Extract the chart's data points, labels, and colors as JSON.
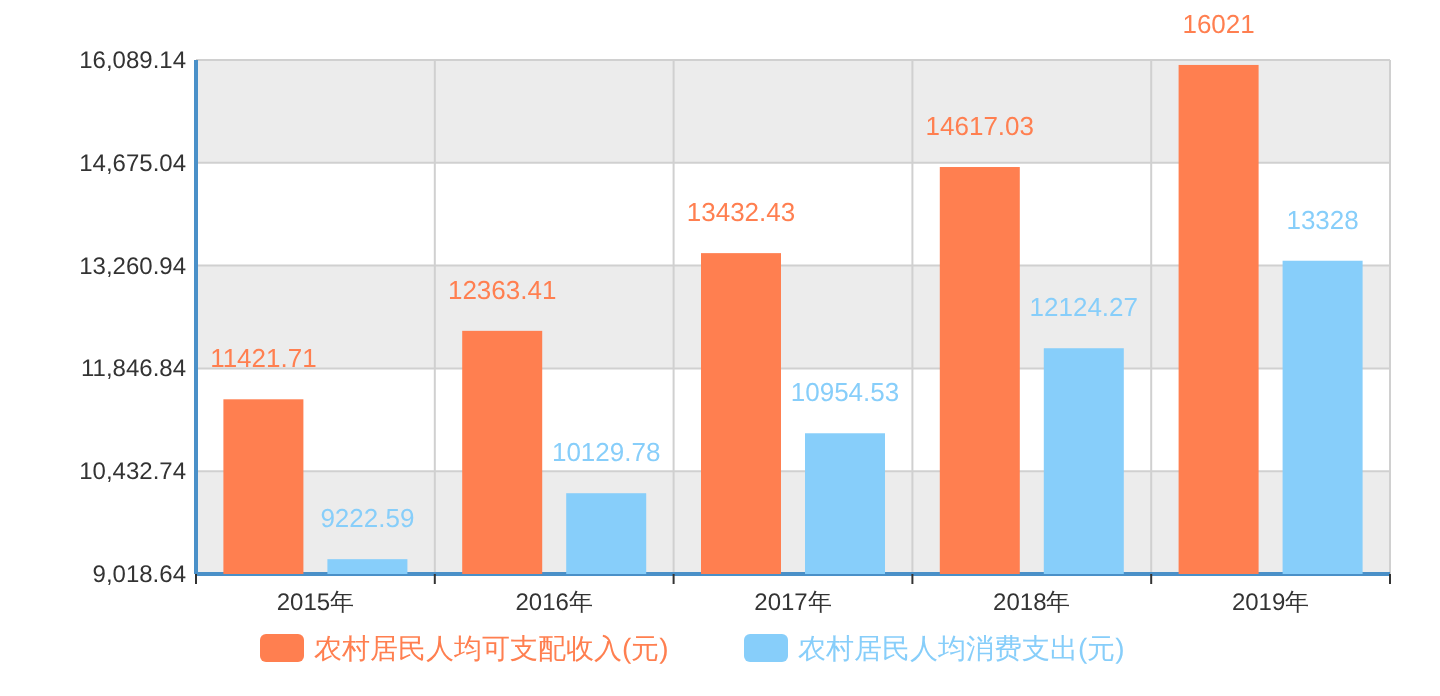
{
  "chart_data": {
    "type": "bar",
    "categories": [
      "2015年",
      "2016年",
      "2017年",
      "2018年",
      "2019年"
    ],
    "series": [
      {
        "name": "农村居民人均可支配收入(元)",
        "color": "#ff7f50",
        "values": [
          11421.71,
          12363.41,
          13432.43,
          14617.03,
          16021
        ]
      },
      {
        "name": "农村居民人均消费支出(元)",
        "color": "#87cefa",
        "values": [
          9222.59,
          10129.78,
          10954.53,
          12124.27,
          13328
        ]
      }
    ],
    "ylim": [
      9018.64,
      16089.14
    ],
    "yticks": [
      {
        "value": 9018.64,
        "label": "9,018.64"
      },
      {
        "value": 10432.74,
        "label": "10,432.74"
      },
      {
        "value": 11846.84,
        "label": "11,846.84"
      },
      {
        "value": 13260.94,
        "label": "13,260.94"
      },
      {
        "value": 14675.04,
        "label": "14,675.04"
      },
      {
        "value": 16089.14,
        "label": "16,089.14"
      }
    ],
    "grid": true,
    "data_labels": true,
    "legend": "bottom"
  }
}
